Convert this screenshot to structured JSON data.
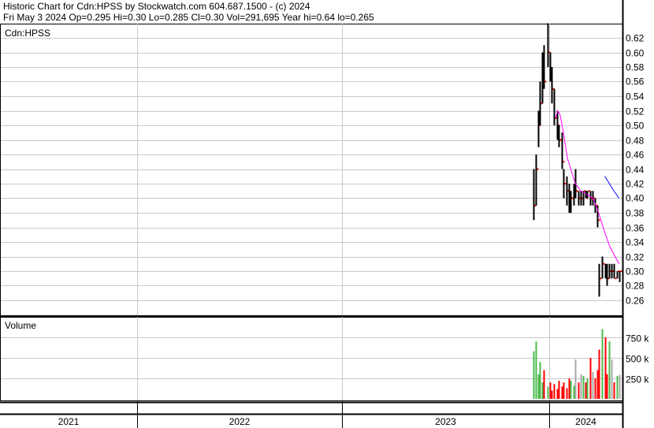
{
  "header": {
    "line1": "Historic Chart for Cdn:HPSS by Stockwatch.com 604.687.1500 - (c) 2024",
    "line2": "Fri May  3 2024   Op=0.295   Hi=0.30   Lo=0.285   Cl=0.30   Vol=291,695   Year hi=0.64   lo=0.265"
  },
  "colors": {
    "price": "#000000",
    "ma_short": "#ff00ff",
    "ma_long": "#0000ff",
    "vol_up": "#4dbb4d",
    "vol_down": "#ff0000",
    "vol_flat": "#aaaaaa",
    "grid": "#c8c8c8"
  },
  "chart_data": {
    "type": "line",
    "price_panel": {
      "label": "Cdn:HPSS",
      "yticks": [
        "0.62",
        "0.60",
        "0.58",
        "0.56",
        "0.54",
        "0.52",
        "0.50",
        "0.48",
        "0.46",
        "0.44",
        "0.42",
        "0.40",
        "0.38",
        "0.36",
        "0.34",
        "0.32",
        "0.30",
        "0.28",
        "0.26"
      ],
      "ylim": [
        0.245,
        0.64
      ],
      "columns": [
        "date",
        "high",
        "low",
        "close",
        "volume_k"
      ],
      "bars": [
        [
          "2023-12-04",
          0.44,
          0.37,
          0.39,
          580
        ],
        [
          "2023-12-08",
          0.46,
          0.39,
          0.44,
          700
        ],
        [
          "2023-12-12",
          0.52,
          0.47,
          0.5,
          300
        ],
        [
          "2023-12-15",
          0.56,
          0.5,
          0.53,
          450
        ],
        [
          "2023-12-20",
          0.6,
          0.53,
          0.58,
          200
        ],
        [
          "2023-12-22",
          0.61,
          0.55,
          0.56,
          350
        ],
        [
          "2023-12-29",
          0.64,
          0.58,
          0.6,
          150
        ],
        [
          "2024-01-02",
          0.6,
          0.56,
          0.57,
          200
        ],
        [
          "2024-01-05",
          0.58,
          0.53,
          0.55,
          100
        ],
        [
          "2024-01-10",
          0.55,
          0.5,
          0.51,
          180
        ],
        [
          "2024-01-15",
          0.52,
          0.48,
          0.5,
          120
        ],
        [
          "2024-01-18",
          0.5,
          0.47,
          0.48,
          220
        ],
        [
          "2024-01-23",
          0.49,
          0.44,
          0.45,
          150
        ],
        [
          "2024-01-26",
          0.44,
          0.4,
          0.42,
          200
        ],
        [
          "2024-01-31",
          0.43,
          0.39,
          0.41,
          130
        ],
        [
          "2024-02-05",
          0.42,
          0.38,
          0.39,
          250
        ],
        [
          "2024-02-08",
          0.41,
          0.38,
          0.4,
          220
        ],
        [
          "2024-02-13",
          0.42,
          0.39,
          0.41,
          160
        ],
        [
          "2024-02-16",
          0.44,
          0.4,
          0.41,
          480
        ],
        [
          "2024-02-21",
          0.41,
          0.39,
          0.4,
          200
        ],
        [
          "2024-02-26",
          0.41,
          0.39,
          0.4,
          300
        ],
        [
          "2024-02-29",
          0.41,
          0.39,
          0.41,
          280
        ],
        [
          "2024-03-05",
          0.41,
          0.4,
          0.4,
          200
        ],
        [
          "2024-03-08",
          0.41,
          0.4,
          0.41,
          250
        ],
        [
          "2024-03-13",
          0.41,
          0.39,
          0.4,
          500
        ],
        [
          "2024-03-18",
          0.41,
          0.39,
          0.4,
          330
        ],
        [
          "2024-03-21",
          0.4,
          0.38,
          0.39,
          250
        ],
        [
          "2024-03-26",
          0.39,
          0.36,
          0.37,
          350
        ],
        [
          "2024-03-29",
          0.31,
          0.265,
          0.29,
          600
        ],
        [
          "2024-04-03",
          0.32,
          0.29,
          0.31,
          850
        ],
        [
          "2024-04-08",
          0.31,
          0.29,
          0.3,
          750
        ],
        [
          "2024-04-11",
          0.31,
          0.28,
          0.29,
          300
        ],
        [
          "2024-04-16",
          0.31,
          0.29,
          0.3,
          700
        ],
        [
          "2024-04-19",
          0.31,
          0.29,
          0.3,
          480
        ],
        [
          "2024-04-24",
          0.31,
          0.29,
          0.29,
          200
        ],
        [
          "2024-04-29",
          0.3,
          0.29,
          0.3,
          280
        ],
        [
          "2024-05-03",
          0.3,
          0.285,
          0.3,
          292
        ]
      ],
      "ma_short": [
        [
          "2024-01-12",
          0.51
        ],
        [
          "2024-01-16",
          0.52
        ],
        [
          "2024-01-20",
          0.515
        ],
        [
          "2024-01-26",
          0.49
        ],
        [
          "2024-02-02",
          0.455
        ],
        [
          "2024-02-08",
          0.44
        ],
        [
          "2024-02-16",
          0.42
        ],
        [
          "2024-02-26",
          0.41
        ],
        [
          "2024-03-08",
          0.405
        ],
        [
          "2024-03-18",
          0.4
        ],
        [
          "2024-03-26",
          0.385
        ],
        [
          "2024-04-05",
          0.36
        ],
        [
          "2024-04-16",
          0.335
        ],
        [
          "2024-04-26",
          0.32
        ],
        [
          "2024-05-03",
          0.31
        ]
      ],
      "ma_long": [
        [
          "2024-04-08",
          0.43
        ],
        [
          "2024-04-16",
          0.42
        ],
        [
          "2024-04-24",
          0.41
        ],
        [
          "2024-05-03",
          0.4
        ]
      ]
    },
    "volume_panel": {
      "label": "Volume",
      "yticks": [
        "750 k",
        "500 k",
        "250 k"
      ],
      "ylim": [
        0,
        1000
      ]
    },
    "xticks": [
      "2021",
      "2022",
      "2023",
      "2024"
    ]
  }
}
